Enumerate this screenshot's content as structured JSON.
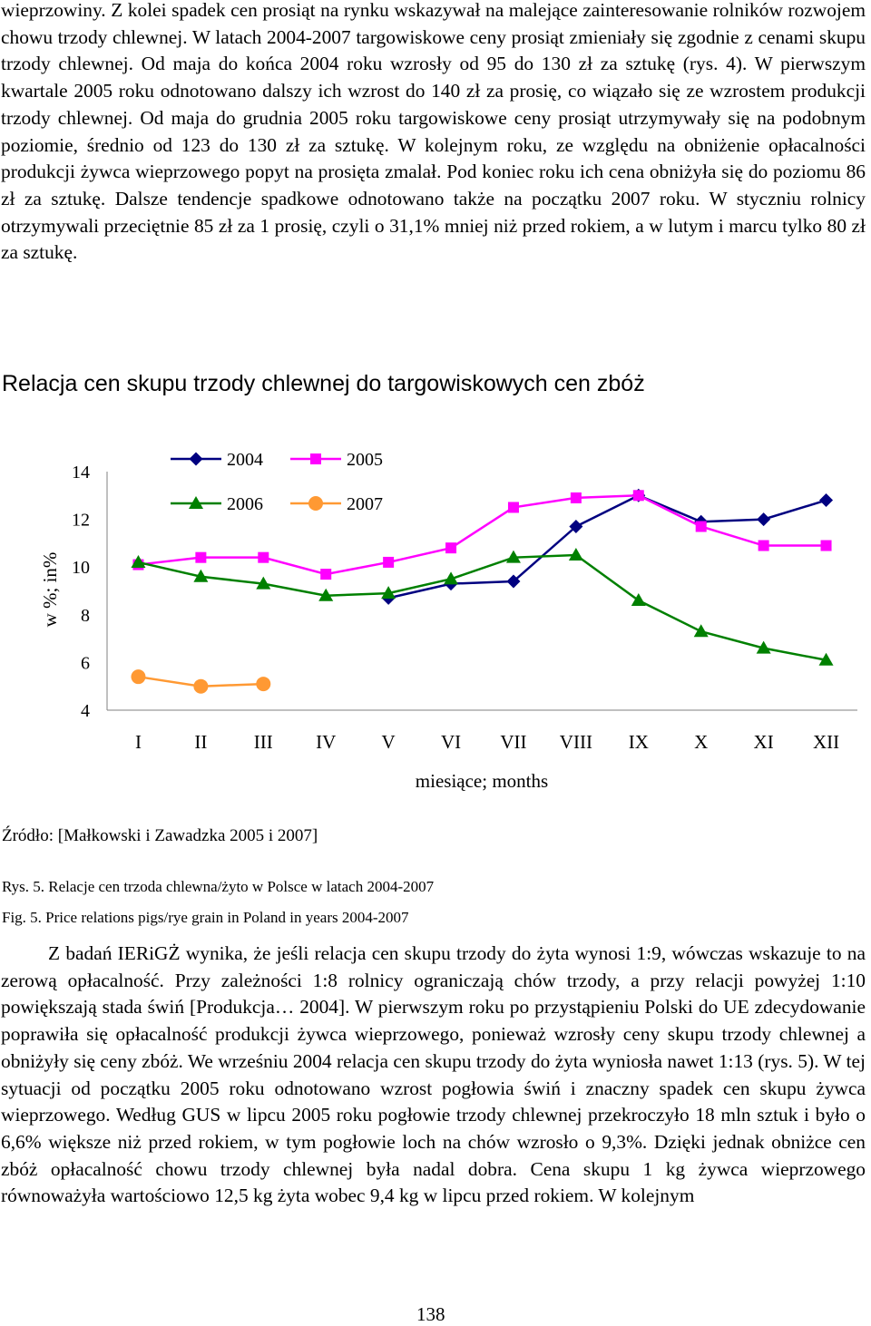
{
  "text_top": "wieprzowiny. Z kolei spadek cen prosiąt na rynku wskazywał na malejące zainteresowanie rolników rozwojem chowu trzody chlewnej. W latach 2004-2007 targowiskowe ceny prosiąt zmieniały się zgodnie z cenami skupu trzody chlewnej. Od maja do końca 2004 roku wzrosły od 95 do 130 zł za sztukę (rys. 4). W pierwszym kwartale 2005 roku odnotowano dalszy ich wzrost do 140 zł za prosię, co wiązało się ze wzrostem produkcji trzody chlewnej. Od maja do grudnia 2005 roku targowiskowe ceny prosiąt utrzymywały się na podobnym poziomie, średnio od 123 do 130 zł za sztukę. W kolejnym roku, ze względu na obniżenie opłacalności produkcji żywca wieprzowego popyt na prosięta zmalał. Pod koniec roku ich cena obniżyła się do poziomu 86 zł za sztukę. Dalsze tendencje spadkowe odnotowano także na początku 2007 roku. W styczniu rolnicy otrzymywali przeciętnie 85 zł za 1 prosię, czyli o 31,1% mniej niż przed rokiem, a w lutym i marcu tylko 80 zł za sztukę.",
  "chart_data": {
    "type": "line",
    "title": "Relacja cen skupu trzody chlewnej do targowiskowych cen zbóż",
    "xlabel": "miesiące; months",
    "ylabel": "w %; in%",
    "categories": [
      "I",
      "II",
      "III",
      "IV",
      "V",
      "VI",
      "VII",
      "VIII",
      "IX",
      "X",
      "XI",
      "XII"
    ],
    "ylim": [
      4,
      14
    ],
    "yticks": [
      "4",
      "6",
      "8",
      "10",
      "12",
      "14"
    ],
    "grid": false,
    "legend": "top-left",
    "series": [
      {
        "name": "2004",
        "color": "#000080",
        "marker": "diamond",
        "values": [
          null,
          null,
          null,
          null,
          8.7,
          9.3,
          9.4,
          11.7,
          13.0,
          11.9,
          12.0,
          12.8
        ]
      },
      {
        "name": "2005",
        "color": "#ff00ff",
        "marker": "square",
        "values": [
          10.1,
          10.4,
          10.4,
          9.7,
          10.2,
          10.8,
          12.5,
          12.9,
          13.0,
          11.7,
          10.9,
          10.9
        ]
      },
      {
        "name": "2006",
        "color": "#008000",
        "marker": "triangle",
        "values": [
          10.2,
          9.6,
          9.3,
          8.8,
          8.9,
          9.5,
          10.4,
          10.5,
          8.6,
          7.3,
          6.6,
          6.1
        ]
      },
      {
        "name": "2007",
        "color": "#ff9933",
        "marker": "circle",
        "values": [
          5.4,
          5.0,
          5.1,
          null,
          null,
          null,
          null,
          null,
          null,
          null,
          null,
          null
        ]
      }
    ]
  },
  "source": "Źródło: [Małkowski i Zawadzka 2005 i 2007]",
  "caption_pl": "Rys. 5. Relacje cen trzoda chlewna/żyto w Polsce w latach 2004-2007",
  "caption_en": "Fig. 5. Price relations pigs/rye grain in Poland in years 2004-2007",
  "text_bottom": "Z badań IERiGŻ wynika, że jeśli relacja cen skupu trzody do żyta wynosi 1:9, wówczas wskazuje to na zerową opłacalność. Przy zależności 1:8 rolnicy ograniczają chów trzody, a przy relacji powyżej 1:10 powiększają stada świń [Produkcja… 2004]. W pierwszym roku po przystąpieniu Polski do UE zdecydowanie poprawiła się opłacalność produkcji żywca wieprzowego, ponieważ wzrosły ceny skupu trzody chlewnej a obniżyły się ceny zbóż. We wrześniu 2004 relacja cen skupu trzody do żyta wyniosła nawet 1:13 (rys. 5). W tej sytuacji od początku 2005 roku odnotowano wzrost pogłowia świń i znaczny spadek cen skupu żywca wieprzowego. Według GUS w lipcu 2005 roku pogłowie trzody chlewnej przekroczyło 18 mln sztuk i było o 6,6% większe niż przed rokiem, w tym pogłowie loch na chów wzrosło o 9,3%. Dzięki jednak obniżce cen zbóż opłacalność chowu trzody chlewnej była nadal dobra. Cena skupu 1 kg żywca wieprzowego równoważyła wartościowo 12,5 kg żyta wobec 9,4 kg w lipcu przed rokiem. W kolejnym",
  "page_number": "138"
}
